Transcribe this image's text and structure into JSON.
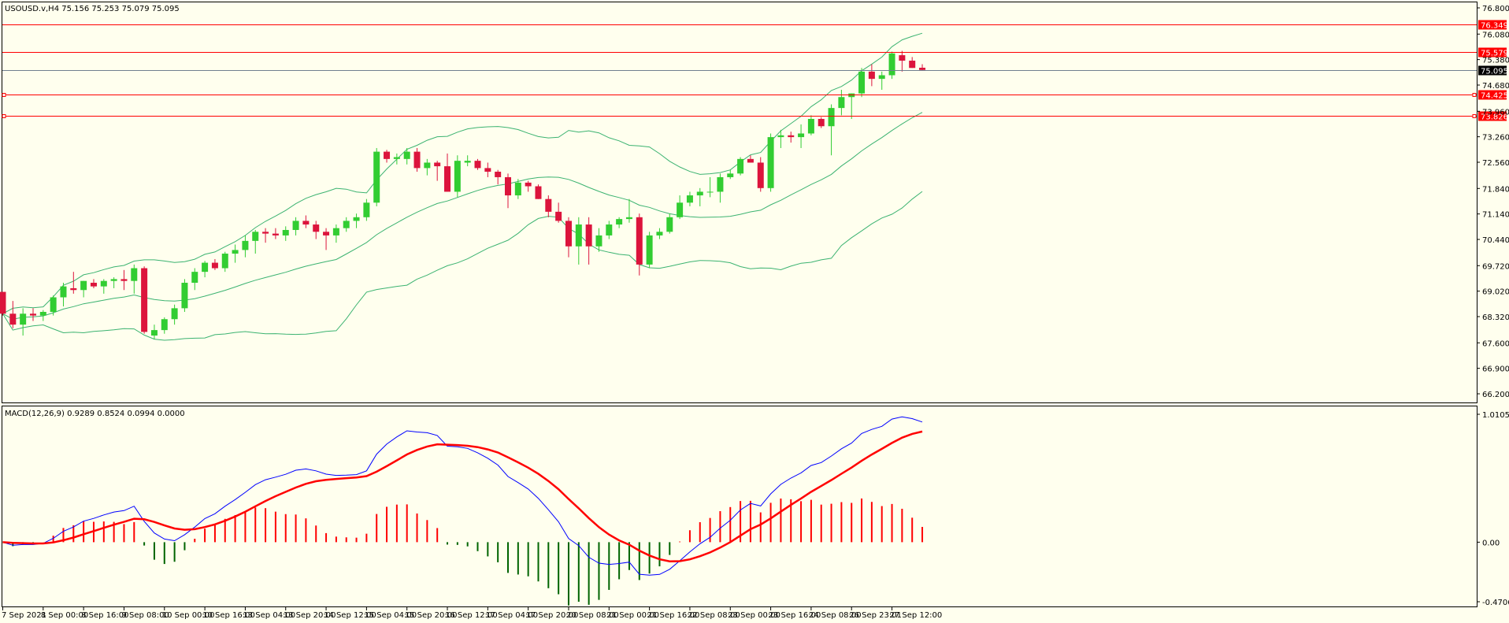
{
  "colors": {
    "background": "#FFFFEE",
    "frame": "#000000",
    "bull": "#32CD32",
    "bear": "#DC143C",
    "level_line": "#FF0000",
    "bid_line": "#708090",
    "bollinger": "#3CB371",
    "macd_line": "#0000FF",
    "signal_line": "#FF0000",
    "hist_pos": "#FF0000",
    "hist_neg": "#006400"
  },
  "main_panel": {
    "header": "USOUSD.v,H4  75.156 75.253 75.079 75.095",
    "y_ticks": [
      "76.800",
      "76.080",
      "75.380",
      "74.680",
      "73.960",
      "73.260",
      "72.560",
      "71.840",
      "71.140",
      "70.440",
      "69.720",
      "69.020",
      "68.320",
      "67.600",
      "66.900",
      "66.200"
    ],
    "y_tick_values": [
      76.8,
      76.08,
      75.38,
      74.68,
      73.96,
      73.26,
      72.56,
      71.84,
      71.14,
      70.44,
      69.72,
      69.02,
      68.32,
      67.6,
      66.9,
      66.2
    ],
    "levels": [
      {
        "label": "76.349",
        "value": 76.349
      },
      {
        "label": "75.579",
        "value": 75.579
      },
      {
        "label": "74.425",
        "value": 74.425,
        "handle": true
      },
      {
        "label": "73.826",
        "value": 73.826,
        "handle": true
      }
    ],
    "bid": {
      "label": "75.095",
      "value": 75.095
    }
  },
  "macd_panel": {
    "header": "MACD(12,26,9) 0.9289 0.8524 0.0994 0.0000",
    "y_ticks": [
      "1.0105",
      "0.00",
      "-0.4706"
    ],
    "y_tick_values": [
      1.0105,
      0.0,
      -0.4706
    ]
  },
  "x_axis": {
    "labels": [
      "7 Sep 2021",
      "8 Sep 00:00",
      "8 Sep 16:00",
      "9 Sep 08:00",
      "10 Sep 00:00",
      "10 Sep 16:00",
      "13 Sep 04:00",
      "13 Sep 20:00",
      "14 Sep 12:00",
      "15 Sep 04:00",
      "15 Sep 20:00",
      "16 Sep 12:00",
      "17 Sep 04:00",
      "17 Sep 20:00",
      "20 Sep 08:00",
      "21 Sep 00:00",
      "21 Sep 16:00",
      "22 Sep 08:00",
      "23 Sep 00:00",
      "23 Sep 16:00",
      "24 Sep 08:00",
      "26 Sep 23:01",
      "27 Sep 12:00"
    ],
    "label_bar_index": [
      0,
      4,
      8,
      12,
      16,
      20,
      24,
      28,
      32,
      36,
      40,
      44,
      48,
      52,
      56,
      60,
      64,
      68,
      72,
      76,
      80,
      84,
      88
    ]
  },
  "chart_data": [
    {
      "type": "candlestick",
      "title": "USOUSD.v,H4",
      "timeframe": "H4",
      "last_ohlc": {
        "open": 75.156,
        "high": 75.253,
        "low": 75.079,
        "close": 75.095
      },
      "ylim": [
        66.2,
        76.8
      ],
      "ohlc": [
        [
          69.0,
          69.0,
          68.35,
          68.4
        ],
        [
          68.4,
          68.75,
          68.0,
          68.1
        ],
        [
          68.1,
          68.55,
          67.8,
          68.4
        ],
        [
          68.4,
          68.55,
          68.2,
          68.35
        ],
        [
          68.35,
          68.5,
          68.2,
          68.45
        ],
        [
          68.45,
          68.9,
          68.35,
          68.85
        ],
        [
          68.85,
          69.25,
          68.6,
          69.15
        ],
        [
          69.1,
          69.55,
          68.95,
          69.05
        ],
        [
          69.05,
          69.3,
          68.85,
          69.3
        ],
        [
          69.25,
          69.35,
          69.1,
          69.15
        ],
        [
          69.15,
          69.35,
          68.95,
          69.3
        ],
        [
          69.3,
          69.4,
          69.1,
          69.35
        ],
        [
          69.35,
          69.6,
          69.05,
          69.3
        ],
        [
          69.3,
          69.75,
          68.95,
          69.65
        ],
        [
          69.65,
          69.7,
          67.85,
          67.9
        ],
        [
          67.8,
          68.1,
          67.7,
          67.95
        ],
        [
          67.95,
          68.3,
          67.85,
          68.25
        ],
        [
          68.25,
          68.65,
          68.1,
          68.55
        ],
        [
          68.55,
          69.35,
          68.45,
          69.25
        ],
        [
          69.25,
          69.65,
          69.05,
          69.55
        ],
        [
          69.55,
          69.85,
          69.4,
          69.8
        ],
        [
          69.8,
          69.9,
          69.6,
          69.65
        ],
        [
          69.65,
          70.1,
          69.55,
          70.05
        ],
        [
          70.05,
          70.3,
          69.8,
          70.15
        ],
        [
          70.15,
          70.55,
          69.95,
          70.4
        ],
        [
          70.4,
          70.7,
          70.05,
          70.65
        ],
        [
          70.65,
          70.75,
          70.35,
          70.6
        ],
        [
          70.6,
          70.75,
          70.45,
          70.55
        ],
        [
          70.55,
          70.8,
          70.4,
          70.7
        ],
        [
          70.7,
          71.05,
          70.55,
          70.95
        ],
        [
          70.95,
          71.1,
          70.75,
          70.85
        ],
        [
          70.85,
          70.95,
          70.45,
          70.65
        ],
        [
          70.65,
          70.75,
          70.15,
          70.55
        ],
        [
          70.55,
          70.85,
          70.35,
          70.75
        ],
        [
          70.75,
          71.05,
          70.65,
          70.95
        ],
        [
          70.95,
          71.15,
          70.75,
          71.05
        ],
        [
          71.05,
          71.55,
          70.95,
          71.45
        ],
        [
          71.45,
          72.95,
          71.35,
          72.85
        ],
        [
          72.85,
          72.9,
          72.55,
          72.65
        ],
        [
          72.65,
          72.8,
          72.5,
          72.7
        ],
        [
          72.65,
          72.95,
          72.5,
          72.85
        ],
        [
          72.85,
          72.95,
          72.3,
          72.4
        ],
        [
          72.4,
          72.65,
          72.2,
          72.55
        ],
        [
          72.55,
          72.6,
          72.05,
          72.45
        ],
        [
          72.45,
          72.8,
          71.75,
          71.75
        ],
        [
          71.75,
          72.75,
          71.6,
          72.6
        ],
        [
          72.55,
          72.75,
          72.45,
          72.6
        ],
        [
          72.6,
          72.65,
          72.35,
          72.4
        ],
        [
          72.4,
          72.55,
          72.15,
          72.3
        ],
        [
          72.3,
          72.35,
          71.95,
          72.15
        ],
        [
          72.15,
          72.25,
          71.3,
          71.65
        ],
        [
          71.65,
          72.1,
          71.55,
          72.0
        ],
        [
          72.0,
          72.05,
          71.75,
          71.9
        ],
        [
          71.9,
          71.95,
          71.55,
          71.55
        ],
        [
          71.55,
          71.65,
          71.05,
          71.2
        ],
        [
          71.2,
          71.45,
          70.9,
          70.95
        ],
        [
          70.95,
          71.05,
          69.95,
          70.25
        ],
        [
          70.25,
          71.05,
          69.75,
          70.85
        ],
        [
          70.85,
          71.05,
          69.75,
          70.25
        ],
        [
          70.25,
          70.75,
          70.1,
          70.55
        ],
        [
          70.55,
          70.95,
          70.45,
          70.85
        ],
        [
          70.85,
          71.05,
          70.75,
          71.0
        ],
        [
          71.0,
          71.55,
          70.9,
          71.05
        ],
        [
          71.05,
          71.15,
          69.45,
          69.75
        ],
        [
          69.75,
          70.65,
          69.65,
          70.55
        ],
        [
          70.55,
          70.75,
          70.45,
          70.65
        ],
        [
          70.65,
          71.15,
          70.6,
          71.05
        ],
        [
          71.05,
          71.65,
          71.0,
          71.45
        ],
        [
          71.45,
          71.75,
          71.35,
          71.65
        ],
        [
          71.65,
          71.85,
          71.35,
          71.75
        ],
        [
          71.75,
          72.15,
          71.6,
          71.75
        ],
        [
          71.75,
          72.25,
          71.45,
          72.15
        ],
        [
          72.15,
          72.35,
          72.1,
          72.25
        ],
        [
          72.25,
          72.7,
          72.2,
          72.65
        ],
        [
          72.65,
          72.75,
          72.55,
          72.55
        ],
        [
          72.55,
          72.7,
          71.75,
          71.85
        ],
        [
          71.85,
          73.35,
          71.75,
          73.25
        ],
        [
          73.25,
          73.45,
          72.95,
          73.3
        ],
        [
          73.3,
          73.4,
          73.1,
          73.25
        ],
        [
          73.25,
          73.6,
          72.95,
          73.35
        ],
        [
          73.35,
          73.85,
          73.3,
          73.75
        ],
        [
          73.75,
          73.8,
          73.5,
          73.55
        ],
        [
          73.55,
          74.15,
          72.75,
          74.05
        ],
        [
          74.05,
          74.55,
          73.85,
          74.35
        ],
        [
          74.35,
          74.45,
          73.75,
          74.45
        ],
        [
          74.45,
          75.15,
          74.35,
          75.05
        ],
        [
          75.05,
          75.25,
          74.65,
          74.85
        ],
        [
          74.85,
          75.05,
          74.55,
          74.95
        ],
        [
          74.95,
          75.6,
          74.85,
          75.55
        ],
        [
          75.5,
          75.62,
          75.05,
          75.35
        ],
        [
          75.35,
          75.45,
          75.15,
          75.15
        ],
        [
          75.156,
          75.253,
          75.079,
          75.095
        ]
      ]
    },
    {
      "type": "line",
      "title": "MACD(12,26,9)",
      "values": {
        "main": 0.9289,
        "signal": 0.8524,
        "histogram": 0.0994,
        "extra": 0.0
      },
      "ylim": [
        -0.4706,
        1.0105
      ]
    }
  ]
}
